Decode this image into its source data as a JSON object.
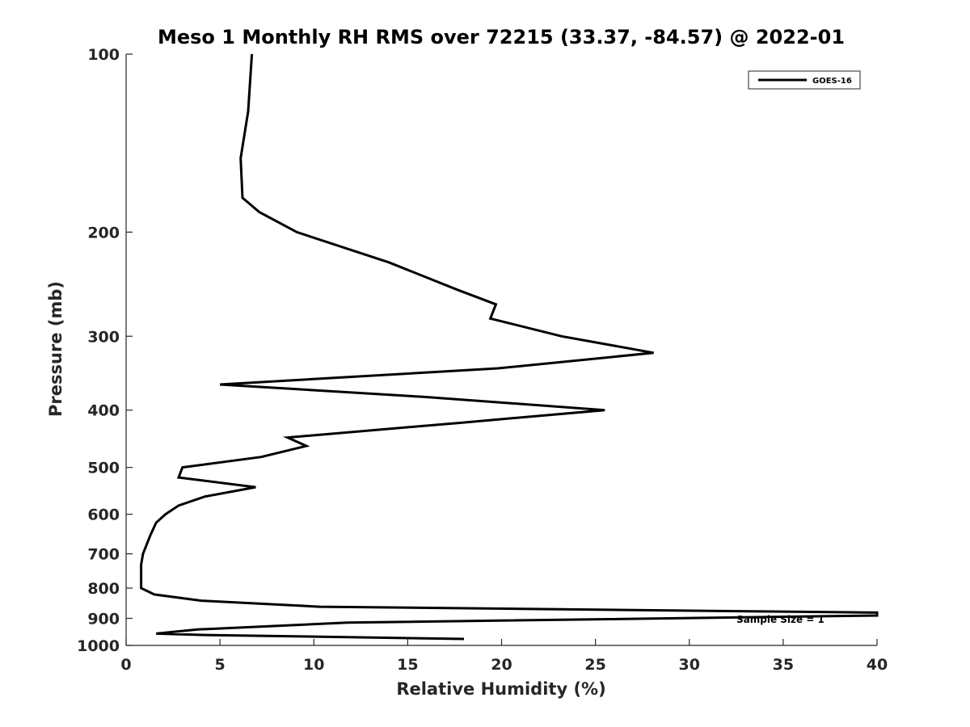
{
  "chart_data": {
    "type": "line",
    "title": "Meso 1 Monthly RH RMS over 72215 (33.37, -84.57) @ 2022-01",
    "xlabel": "Relative Humidity (%)",
    "ylabel": "Pressure (mb)",
    "xlim": [
      0,
      40
    ],
    "ylim": [
      1000,
      100
    ],
    "yscale": "log",
    "y_reversed": true,
    "grid": false,
    "legend_position": "top-right",
    "xticks": [
      0,
      5,
      10,
      15,
      20,
      25,
      30,
      35,
      40
    ],
    "xtick_labels": [
      "0",
      "5",
      "10",
      "15",
      "20",
      "25",
      "30",
      "35",
      "40"
    ],
    "yticks": [
      100,
      200,
      300,
      400,
      500,
      600,
      700,
      800,
      900,
      1000
    ],
    "ytick_labels": [
      "100",
      "200",
      "300",
      "400",
      "500",
      "600",
      "700",
      "800",
      "900",
      "1000"
    ],
    "series": [
      {
        "name": "GOES-16",
        "color": "#000000",
        "x": [
          6.7,
          6.5,
          6.1,
          6.2,
          7.1,
          9.1,
          14.0,
          17.6,
          19.7,
          19.4,
          23.2,
          28.1,
          19.8,
          5.0,
          15.9,
          25.5,
          17.9,
          8.6,
          9.6,
          7.2,
          3.0,
          2.8,
          6.9,
          4.2,
          2.8,
          2.1,
          1.6,
          1.3,
          0.9,
          0.8,
          0.8,
          0.8,
          1.5,
          4.0,
          10.3,
          40.0,
          40.0,
          11.8,
          3.8,
          1.6,
          4.0,
          18.0
        ],
        "y": [
          100,
          125,
          150,
          175,
          185,
          200,
          225,
          250,
          265,
          280,
          300,
          320,
          340,
          362,
          380,
          400,
          420,
          445,
          460,
          480,
          500,
          520,
          540,
          560,
          580,
          600,
          620,
          650,
          700,
          730,
          760,
          800,
          820,
          840,
          860,
          880,
          890,
          915,
          940,
          955,
          960,
          975
        ]
      }
    ],
    "annotations": [
      {
        "text": "Sample Size = 1",
        "x": 35,
        "y": 900
      }
    ]
  }
}
